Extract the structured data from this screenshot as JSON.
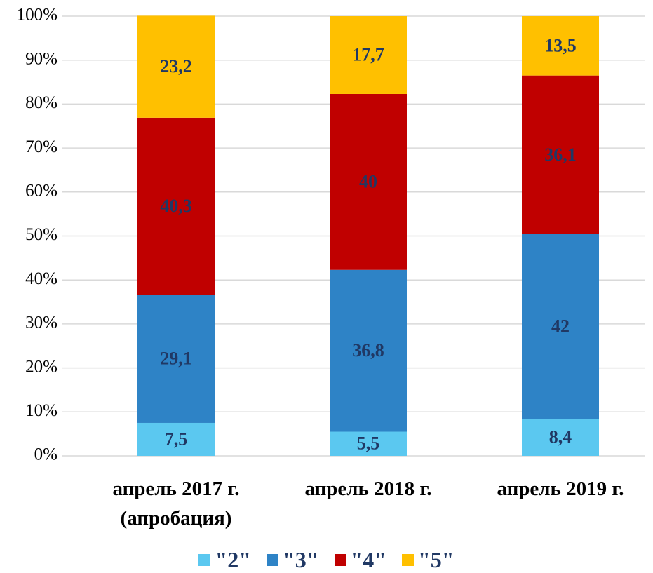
{
  "chart_data": {
    "type": "stacked_bar",
    "categories": [
      "апрель 2017 г. (апробация)",
      "апрель 2018 г.",
      "апрель 2019 г."
    ],
    "series": [
      {
        "name": "\"2\"",
        "color": "#5bc8f0",
        "values": [
          7.5,
          5.5,
          8.4
        ],
        "value_labels": [
          "7,5",
          "5,5",
          "8,4"
        ]
      },
      {
        "name": "\"3\"",
        "color": "#2e83c6",
        "values": [
          29.1,
          36.8,
          42
        ],
        "value_labels": [
          "29,1",
          "36,8",
          "42"
        ]
      },
      {
        "name": "\"4\"",
        "color": "#c00000",
        "values": [
          40.3,
          40,
          36.1
        ],
        "value_labels": [
          "40,3",
          "40",
          "36,1"
        ]
      },
      {
        "name": "\"5\"",
        "color": "#ffc000",
        "values": [
          23.2,
          17.7,
          13.5
        ],
        "value_labels": [
          "23,2",
          "17,7",
          "13,5"
        ]
      }
    ],
    "ylim": [
      0,
      100
    ],
    "yticks": [
      {
        "value": 0,
        "label": "0%"
      },
      {
        "value": 10,
        "label": "10%"
      },
      {
        "value": 20,
        "label": "20%"
      },
      {
        "value": 30,
        "label": "30%"
      },
      {
        "value": 40,
        "label": "40%"
      },
      {
        "value": 50,
        "label": "50%"
      },
      {
        "value": 60,
        "label": "60%"
      },
      {
        "value": 70,
        "label": "70%"
      },
      {
        "value": 80,
        "label": "80%"
      },
      {
        "value": 90,
        "label": "90%"
      },
      {
        "value": 100,
        "label": "100%"
      }
    ],
    "grid": true,
    "legend": "bottom"
  }
}
